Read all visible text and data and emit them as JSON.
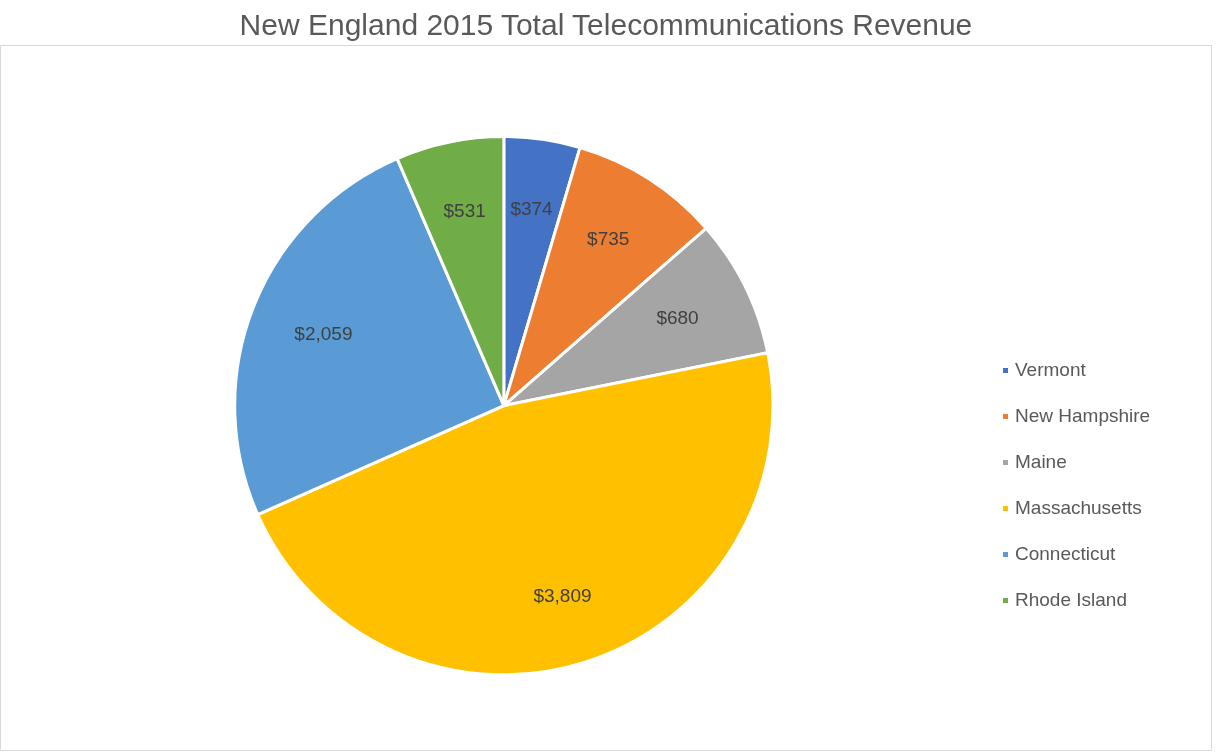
{
  "chart_data": {
    "type": "pie",
    "title": "New England 2015 Total Telecommunications Revenue",
    "categories": [
      "Vermont",
      "New Hampshire",
      "Maine",
      "Massachusetts",
      "Connecticut",
      "Rhode Island"
    ],
    "values": [
      374,
      735,
      680,
      3809,
      2059,
      531
    ],
    "colors": [
      "#4472c4",
      "#ed7d31",
      "#a5a5a5",
      "#ffc000",
      "#5b9bd5",
      "#70ad47"
    ],
    "value_labels": [
      "$374",
      "$735",
      "$680",
      "$3,809",
      "$2,059",
      "$531"
    ],
    "legend": "right"
  }
}
